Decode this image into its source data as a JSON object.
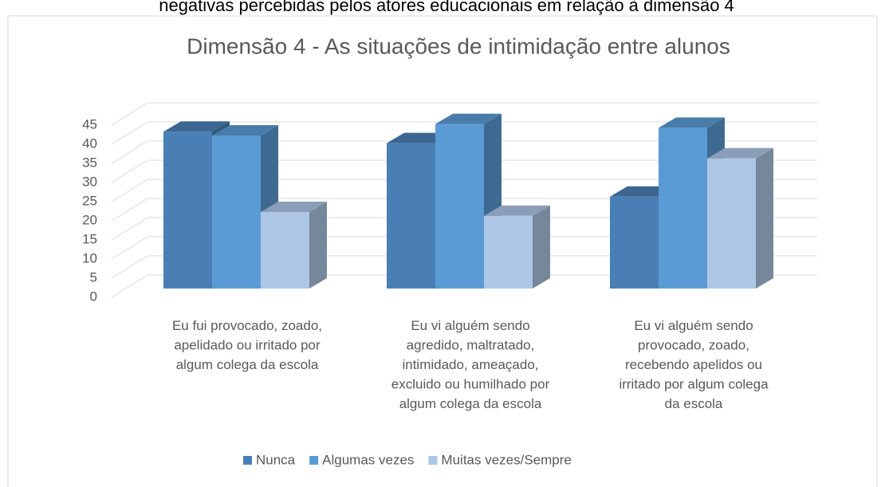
{
  "caption": "negativas percebidas pelos atores educacionais em relação à dimensão 4",
  "chart_data": {
    "type": "bar3d",
    "title": "Dimensão 4 -  As situações de intimidação entre alunos",
    "categories": [
      "Eu fui provocado, zoado, apelidado ou irritado por algum colega da escola",
      "Eu vi alguém sendo agredido, maltratado, intimidado, ameaçado, excluido ou humilhado por algum colega da escola",
      "Eu vi alguém sendo provocado, zoado, recebendo apelidos ou irritado por algum colega da escola"
    ],
    "series": [
      {
        "name": "Nunca",
        "color": "#4a7fb5",
        "values": [
          41,
          38,
          24
        ]
      },
      {
        "name": "Algumas vezes",
        "color": "#5b9bd5",
        "values": [
          40,
          43,
          42
        ]
      },
      {
        "name": "Muitas vezes/Sempre",
        "color": "#adc6e6",
        "values": [
          20,
          19,
          34
        ]
      }
    ],
    "ylim": [
      0,
      45
    ],
    "yticks": [
      0,
      5,
      10,
      15,
      20,
      25,
      30,
      35,
      40,
      45
    ],
    "grid": true,
    "legend": "bottom"
  }
}
